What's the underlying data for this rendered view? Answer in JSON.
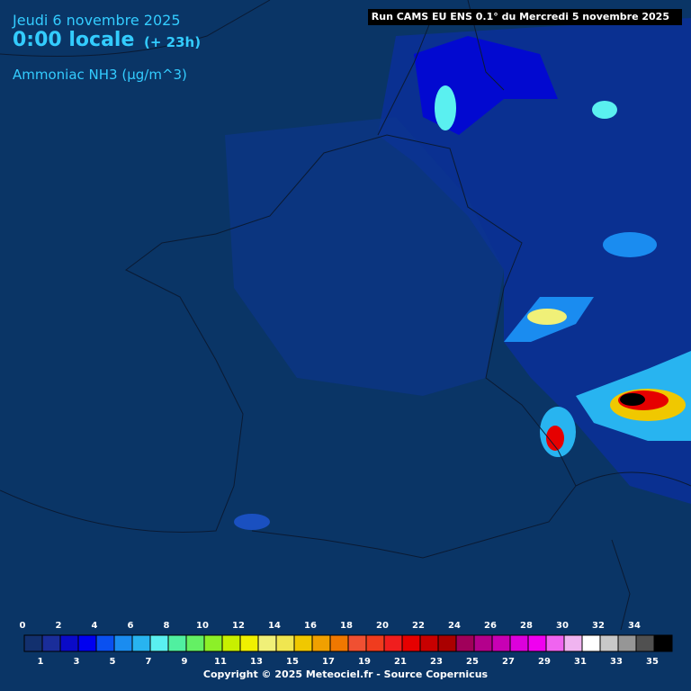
{
  "header": {
    "date": "Jeudi 6 novembre 2025",
    "time": "0:00 locale",
    "lead": "(+ 23h)",
    "variable": "Ammoniac NH3 (µg/m^3)",
    "run": "Run CAMS EU ENS 0.1° du Mercredi 5 novembre 2025"
  },
  "legend": {
    "levels": [
      0,
      1,
      2,
      3,
      4,
      5,
      6,
      7,
      8,
      9,
      10,
      11,
      12,
      13,
      14,
      15,
      16,
      17,
      18,
      19,
      20,
      21,
      22,
      23,
      24,
      25,
      26,
      27,
      28,
      29,
      30,
      31,
      32,
      33,
      34,
      35
    ],
    "colors": [
      "#12306e",
      "#1a2d9a",
      "#0a0ac8",
      "#0000f0",
      "#0a50f0",
      "#1a8cf0",
      "#28b4f0",
      "#5af0f0",
      "#50f0a0",
      "#64f064",
      "#8cf028",
      "#c8f000",
      "#f0f000",
      "#f0f078",
      "#f0e650",
      "#f0c800",
      "#f0a000",
      "#f07800",
      "#f05032",
      "#f03c1e",
      "#f01e1e",
      "#e60000",
      "#c80000",
      "#aa0000",
      "#a0005a",
      "#b4008c",
      "#c800b4",
      "#dc00dc",
      "#f000f0",
      "#f064f0",
      "#f0b4f0",
      "#ffffff",
      "#c8c8c8",
      "#969696",
      "#505050",
      "#000000"
    ]
  },
  "footer": {
    "copyright": "Copyright © 2025 Meteociel.fr - Source Copernicus"
  }
}
